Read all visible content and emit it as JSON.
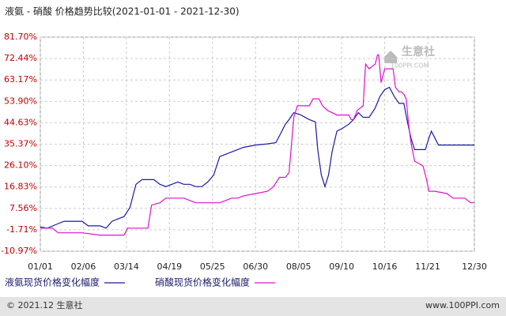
{
  "chart_data": {
    "type": "line",
    "title": "液氨 - 硝酸 价格趋势比较(2021-01-01 - 2021-12-30)",
    "watermark": {
      "brand": "生意社",
      "site": "100PPI.COM"
    },
    "footer": {
      "left": "© 2021.12 生意社",
      "right": "www.100PPI.com"
    },
    "grid": true,
    "xlim": [
      0,
      363
    ],
    "xticks": [
      {
        "value": 0,
        "label": "01/01"
      },
      {
        "value": 36,
        "label": "02/06"
      },
      {
        "value": 72,
        "label": "03/14"
      },
      {
        "value": 108,
        "label": "04/19"
      },
      {
        "value": 144,
        "label": "05/25"
      },
      {
        "value": 180,
        "label": "06/30"
      },
      {
        "value": 216,
        "label": "08/05"
      },
      {
        "value": 252,
        "label": "09/10"
      },
      {
        "value": 288,
        "label": "10/16"
      },
      {
        "value": 324,
        "label": "11/21"
      },
      {
        "value": 363,
        "label": "12/30"
      }
    ],
    "ylim": [
      -10.97,
      81.7
    ],
    "yticks": [
      {
        "value": -10.97,
        "label": "-10.97%"
      },
      {
        "value": -1.71,
        "label": "-1.71%"
      },
      {
        "value": 7.56,
        "label": "7.56%"
      },
      {
        "value": 16.83,
        "label": "16.83%"
      },
      {
        "value": 26.1,
        "label": "26.10%"
      },
      {
        "value": 35.37,
        "label": "35.37%"
      },
      {
        "value": 44.63,
        "label": "44.63%"
      },
      {
        "value": 53.9,
        "label": "53.90%"
      },
      {
        "value": 63.17,
        "label": "63.17%"
      },
      {
        "value": 72.44,
        "label": "72.44%"
      },
      {
        "value": 81.7,
        "label": "81.70%"
      }
    ],
    "series": [
      {
        "name": "液氨现货价格变化幅度",
        "color": "#1a1aa8",
        "x": [
          0,
          6,
          15,
          20,
          30,
          35,
          40,
          50,
          55,
          60,
          65,
          70,
          75,
          80,
          85,
          95,
          100,
          105,
          110,
          115,
          120,
          125,
          130,
          135,
          140,
          145,
          150,
          155,
          160,
          165,
          170,
          180,
          190,
          197,
          200,
          205,
          208,
          212,
          218,
          225,
          230,
          232,
          235,
          238,
          241,
          244,
          248,
          252,
          258,
          262,
          266,
          270,
          275,
          280,
          284,
          288,
          292,
          296,
          300,
          304,
          307,
          310,
          313,
          318,
          322,
          325,
          327,
          330,
          333,
          340,
          363
        ],
        "values": [
          -0.5,
          -1,
          1,
          2,
          2,
          2,
          0,
          0,
          -1,
          2,
          3,
          4,
          8,
          18,
          20,
          20,
          18,
          17,
          18,
          19,
          18,
          18,
          17,
          17,
          19,
          22,
          30,
          31,
          32,
          33,
          34,
          35,
          35.5,
          36,
          39,
          44,
          46,
          49,
          48,
          46,
          45,
          33,
          22,
          17,
          22,
          32,
          41,
          42,
          44,
          46,
          49,
          47,
          47,
          51,
          56,
          59,
          60,
          56,
          53,
          53,
          45,
          38,
          33,
          33,
          33,
          38,
          41,
          38,
          35,
          35,
          35
        ]
      },
      {
        "name": "硝酸现货价格变化幅度",
        "color": "#e010d0",
        "x": [
          0,
          10,
          15,
          35,
          50,
          70,
          73,
          90,
          93,
          100,
          105,
          120,
          130,
          150,
          160,
          165,
          170,
          180,
          190,
          195,
          200,
          205,
          208,
          210,
          212,
          215,
          225,
          228,
          233,
          236,
          240,
          248,
          258,
          260,
          262,
          265,
          270,
          272,
          275,
          280,
          282,
          283,
          285,
          288,
          295,
          297,
          300,
          302,
          304,
          306,
          308,
          310,
          313,
          320,
          323,
          325,
          330,
          340,
          345,
          355,
          360,
          363
        ],
        "values": [
          -1,
          -1,
          -3,
          -3,
          -4,
          -4,
          -1,
          -1,
          9,
          10,
          12,
          12,
          10,
          10,
          12,
          12,
          13,
          14,
          15,
          17,
          21,
          21,
          23,
          35,
          47,
          52,
          52,
          55,
          55,
          52,
          50,
          48,
          48,
          46,
          46,
          50,
          52,
          70,
          68,
          70,
          74,
          74,
          62,
          68,
          68,
          60,
          58,
          58,
          57,
          55,
          44,
          36,
          28,
          26,
          20,
          15,
          15,
          14,
          12,
          12,
          10,
          10
        ]
      }
    ]
  }
}
